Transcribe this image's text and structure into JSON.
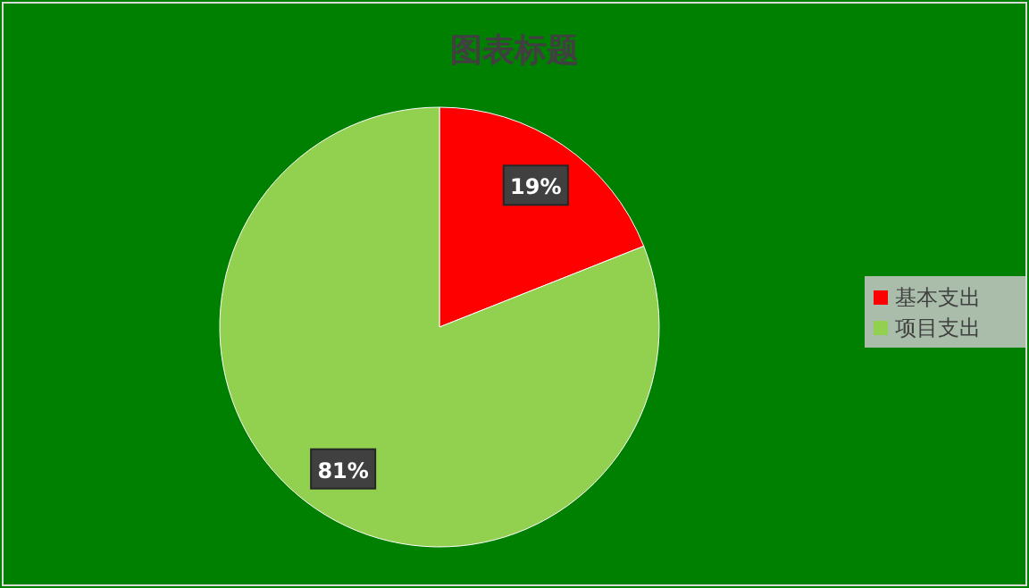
{
  "chart_data": {
    "type": "pie",
    "title": "图表标题",
    "categories": [
      "基本支出",
      "项目支出"
    ],
    "values": [
      19,
      81
    ],
    "colors": [
      "#ff0000",
      "#92d050"
    ],
    "value_labels": [
      "19%",
      "81%"
    ],
    "legend": "right"
  }
}
